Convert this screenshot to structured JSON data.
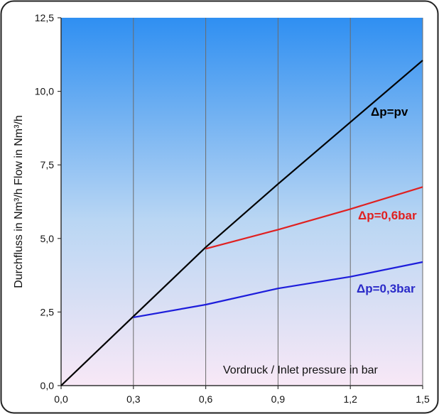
{
  "chart_data": {
    "type": "line",
    "title": "",
    "xlabel": "Vordruck / Inlet pressure in bar",
    "ylabel": "Durchfluss in Nm³/h  Flow in Nm³/h",
    "xlim": [
      0,
      1.5
    ],
    "ylim": [
      0,
      12.5
    ],
    "x_ticks": [
      0,
      0.3,
      0.6,
      0.9,
      1.2,
      1.5
    ],
    "x_tick_labels": [
      "0,0",
      "0,3",
      "0,6",
      "0,9",
      "1,2",
      "1,5"
    ],
    "y_ticks": [
      0,
      2.5,
      5,
      7.5,
      10,
      12.5
    ],
    "y_tick_labels": [
      "0,0",
      "2,5",
      "5,0",
      "7,5",
      "10,0",
      "12,5"
    ],
    "grid": "vertical",
    "background_gradient": [
      "#2f8ff2",
      "#f8e8f6"
    ],
    "series": [
      {
        "name": "Δp=pv",
        "color": "#000000",
        "x": [
          0,
          0.3,
          0.6,
          0.9,
          1.2,
          1.5
        ],
        "y": [
          0,
          2.35,
          4.7,
          6.85,
          8.95,
          11.05
        ]
      },
      {
        "name": "Δp=0,6bar",
        "color": "#e02020",
        "x": [
          0.6,
          0.9,
          1.2,
          1.5
        ],
        "y": [
          4.65,
          5.3,
          6.0,
          6.75
        ]
      },
      {
        "name": "Δp=0,3bar",
        "color": "#1d1ddb",
        "x": [
          0.3,
          0.6,
          0.9,
          1.2,
          1.5
        ],
        "y": [
          2.32,
          2.75,
          3.3,
          3.7,
          4.2
        ]
      }
    ]
  }
}
